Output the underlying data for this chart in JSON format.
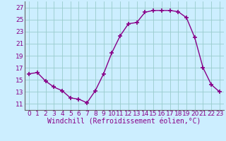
{
  "x": [
    0,
    1,
    2,
    3,
    4,
    5,
    6,
    7,
    8,
    9,
    10,
    11,
    12,
    13,
    14,
    15,
    16,
    17,
    18,
    19,
    20,
    21,
    22,
    23
  ],
  "y": [
    16.0,
    16.2,
    14.8,
    13.8,
    13.2,
    12.0,
    11.8,
    11.2,
    13.2,
    16.0,
    19.5,
    22.3,
    24.3,
    24.5,
    26.2,
    26.5,
    26.5,
    26.5,
    26.3,
    25.3,
    22.0,
    17.0,
    14.2,
    13.0
  ],
  "line_color": "#880088",
  "marker": "+",
  "marker_size": 4,
  "marker_edge_width": 1.2,
  "bg_color": "#cceeff",
  "grid_color": "#99cccc",
  "axis_color": "#666666",
  "ylabel_ticks": [
    11,
    13,
    15,
    17,
    19,
    21,
    23,
    25,
    27
  ],
  "xlabel": "Windchill (Refroidissement éolien,°C)",
  "ylim": [
    10.0,
    28.0
  ],
  "xlim": [
    -0.5,
    23.5
  ],
  "xlabel_fontsize": 7.0,
  "tick_fontsize": 6.5,
  "line_width": 1.0
}
